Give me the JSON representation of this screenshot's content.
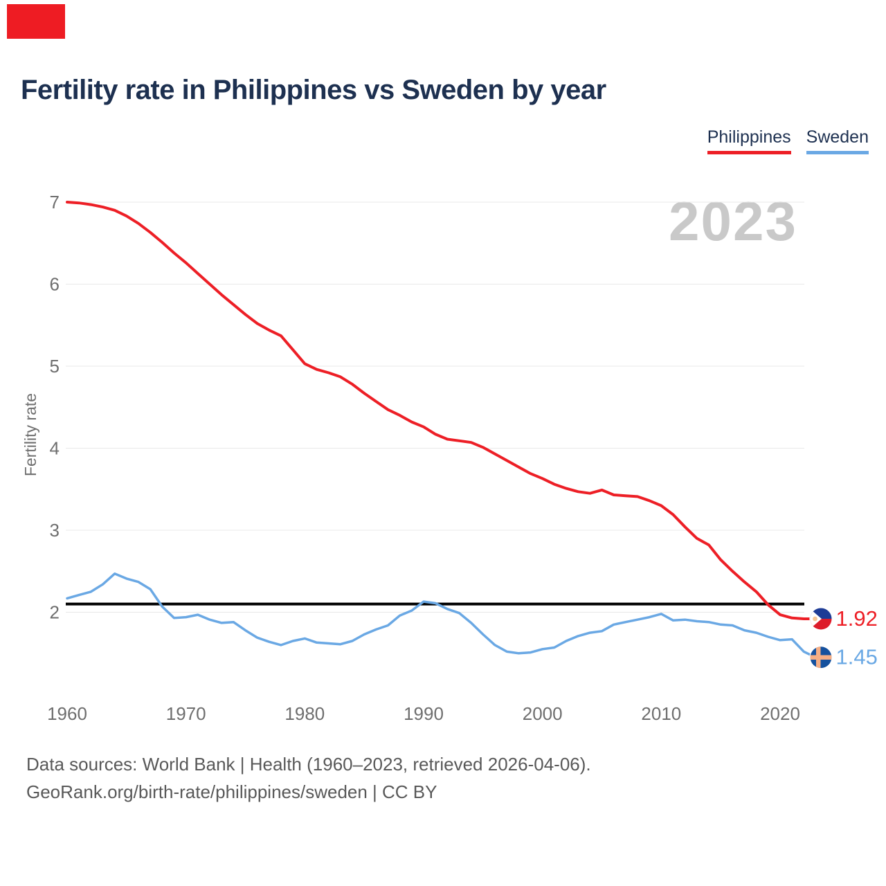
{
  "header": {
    "title": "Fertility rate in Philippines vs Sweden by year"
  },
  "legend": {
    "items": [
      {
        "label": "Philippines",
        "color": "#ed1f26"
      },
      {
        "label": "Sweden",
        "color": "#6aa8e4"
      }
    ]
  },
  "watermark": {
    "text": "2023"
  },
  "chart_data": {
    "type": "line",
    "title": "Fertility rate in Philippines vs Sweden by year",
    "xlabel": "",
    "ylabel": "Fertility rate",
    "grid": true,
    "legend_position": "top-right",
    "ylim": [
      1.3,
      7.0
    ],
    "xlim": [
      1960,
      2023
    ],
    "yticks": [
      2,
      3,
      4,
      5,
      6,
      7
    ],
    "xticks": [
      1960,
      1970,
      1980,
      1990,
      2000,
      2010,
      2020
    ],
    "years": [
      1960,
      1961,
      1962,
      1963,
      1964,
      1965,
      1966,
      1967,
      1968,
      1969,
      1970,
      1971,
      1972,
      1973,
      1974,
      1975,
      1976,
      1977,
      1978,
      1979,
      1980,
      1981,
      1982,
      1983,
      1984,
      1985,
      1986,
      1987,
      1988,
      1989,
      1990,
      1991,
      1992,
      1993,
      1994,
      1995,
      1996,
      1997,
      1998,
      1999,
      2000,
      2001,
      2002,
      2003,
      2004,
      2005,
      2006,
      2007,
      2008,
      2009,
      2010,
      2011,
      2012,
      2013,
      2014,
      2015,
      2016,
      2017,
      2018,
      2019,
      2020,
      2021,
      2022,
      2023
    ],
    "series": [
      {
        "name": "Philippines",
        "color": "#ed1f26",
        "values": [
          7.0,
          6.99,
          6.97,
          6.94,
          6.9,
          6.83,
          6.74,
          6.63,
          6.51,
          6.38,
          6.26,
          6.13,
          6.0,
          5.87,
          5.75,
          5.63,
          5.52,
          5.44,
          5.37,
          5.2,
          5.03,
          4.96,
          4.92,
          4.87,
          4.78,
          4.67,
          4.57,
          4.47,
          4.4,
          4.32,
          4.26,
          4.17,
          4.11,
          4.09,
          4.07,
          4.01,
          3.93,
          3.85,
          3.77,
          3.69,
          3.63,
          3.56,
          3.51,
          3.47,
          3.45,
          3.49,
          3.43,
          3.42,
          3.41,
          3.36,
          3.3,
          3.19,
          3.04,
          2.9,
          2.82,
          2.64,
          2.5,
          2.37,
          2.25,
          2.09,
          1.97,
          1.93,
          1.92,
          1.92
        ]
      },
      {
        "name": "Sweden",
        "color": "#6aa8e4",
        "values": [
          2.17,
          2.21,
          2.25,
          2.34,
          2.47,
          2.41,
          2.37,
          2.28,
          2.07,
          1.93,
          1.94,
          1.97,
          1.91,
          1.87,
          1.88,
          1.78,
          1.69,
          1.64,
          1.6,
          1.65,
          1.68,
          1.63,
          1.62,
          1.61,
          1.65,
          1.73,
          1.79,
          1.84,
          1.96,
          2.02,
          2.13,
          2.11,
          2.04,
          1.99,
          1.87,
          1.73,
          1.6,
          1.52,
          1.5,
          1.51,
          1.55,
          1.57,
          1.65,
          1.71,
          1.75,
          1.77,
          1.85,
          1.88,
          1.91,
          1.94,
          1.98,
          1.9,
          1.91,
          1.89,
          1.88,
          1.85,
          1.84,
          1.78,
          1.75,
          1.7,
          1.66,
          1.67,
          1.52,
          1.45
        ]
      }
    ],
    "reference_line": {
      "value": 2.1,
      "color": "#000000"
    },
    "end_labels": [
      {
        "text": "1.92",
        "series": "Philippines",
        "value": 1.92
      },
      {
        "text": "1.45",
        "series": "Sweden",
        "value": 1.45
      }
    ]
  },
  "footer": {
    "line1": "Data sources: World Bank | Health (1960–2023, retrieved 2026-04-06).",
    "line2": "GeoRank.org/birth-rate/philippines/sweden | CC BY"
  }
}
